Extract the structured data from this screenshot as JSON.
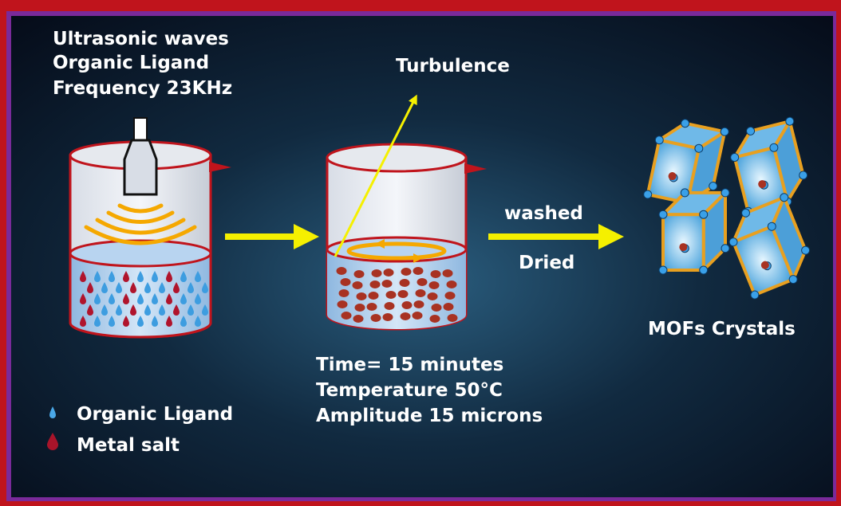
{
  "labels": {
    "ultrasonic": [
      "Ultrasonic waves",
      "Organic Ligand",
      "Frequency 23KHz"
    ],
    "turbulence": "Turbulence",
    "washed": "washed",
    "dried": "Dried",
    "product": "MOFs Crystals",
    "conditions": [
      "Time= 15 minutes",
      "Temperature  50°C",
      "Amplitude 15 microns"
    ]
  },
  "legend": [
    "Organic Ligand",
    "Metal salt"
  ]
}
